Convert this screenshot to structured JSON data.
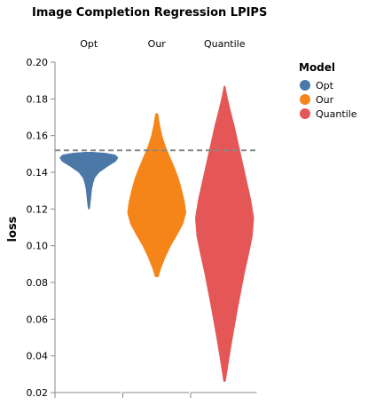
{
  "chart_data": {
    "type": "violin",
    "title": "Image Completion Regression LPIPS",
    "ylabel": "loss",
    "xlabel": "",
    "ylim": [
      0.02,
      0.2
    ],
    "yticks": [
      "0.02",
      "0.04",
      "0.06",
      "0.08",
      "0.10",
      "0.12",
      "0.14",
      "0.16",
      "0.18",
      "0.20"
    ],
    "reference_line": {
      "y": 0.152,
      "style": "dashed",
      "color": "#888888"
    },
    "legend": {
      "title": "Model",
      "position": "right"
    },
    "series": [
      {
        "name": "Opt",
        "color": "#4c78a8",
        "min": 0.12,
        "max": 0.151,
        "density": [
          [
            0.12,
            0.02
          ],
          [
            0.122,
            0.04
          ],
          [
            0.125,
            0.06
          ],
          [
            0.128,
            0.08
          ],
          [
            0.131,
            0.1
          ],
          [
            0.134,
            0.14
          ],
          [
            0.137,
            0.2
          ],
          [
            0.14,
            0.35
          ],
          [
            0.143,
            0.62
          ],
          [
            0.146,
            0.92
          ],
          [
            0.148,
            1.0
          ],
          [
            0.1495,
            0.9
          ],
          [
            0.1505,
            0.55
          ],
          [
            0.151,
            0.1
          ]
        ]
      },
      {
        "name": "Our",
        "color": "#f58518",
        "min": 0.083,
        "max": 0.172,
        "density": [
          [
            0.083,
            0.05
          ],
          [
            0.088,
            0.15
          ],
          [
            0.094,
            0.3
          ],
          [
            0.1,
            0.48
          ],
          [
            0.106,
            0.7
          ],
          [
            0.112,
            0.9
          ],
          [
            0.118,
            1.0
          ],
          [
            0.124,
            0.95
          ],
          [
            0.13,
            0.86
          ],
          [
            0.136,
            0.76
          ],
          [
            0.142,
            0.62
          ],
          [
            0.148,
            0.46
          ],
          [
            0.154,
            0.3
          ],
          [
            0.16,
            0.18
          ],
          [
            0.166,
            0.1
          ],
          [
            0.172,
            0.04
          ]
        ]
      },
      {
        "name": "Quantile",
        "color": "#e45756",
        "min": 0.026,
        "max": 0.187,
        "density": [
          [
            0.026,
            0.03
          ],
          [
            0.035,
            0.12
          ],
          [
            0.045,
            0.22
          ],
          [
            0.055,
            0.33
          ],
          [
            0.065,
            0.44
          ],
          [
            0.075,
            0.56
          ],
          [
            0.085,
            0.68
          ],
          [
            0.095,
            0.82
          ],
          [
            0.105,
            0.95
          ],
          [
            0.115,
            1.0
          ],
          [
            0.125,
            0.9
          ],
          [
            0.135,
            0.76
          ],
          [
            0.145,
            0.62
          ],
          [
            0.155,
            0.48
          ],
          [
            0.165,
            0.34
          ],
          [
            0.175,
            0.18
          ],
          [
            0.182,
            0.08
          ],
          [
            0.187,
            0.02
          ]
        ]
      }
    ]
  }
}
